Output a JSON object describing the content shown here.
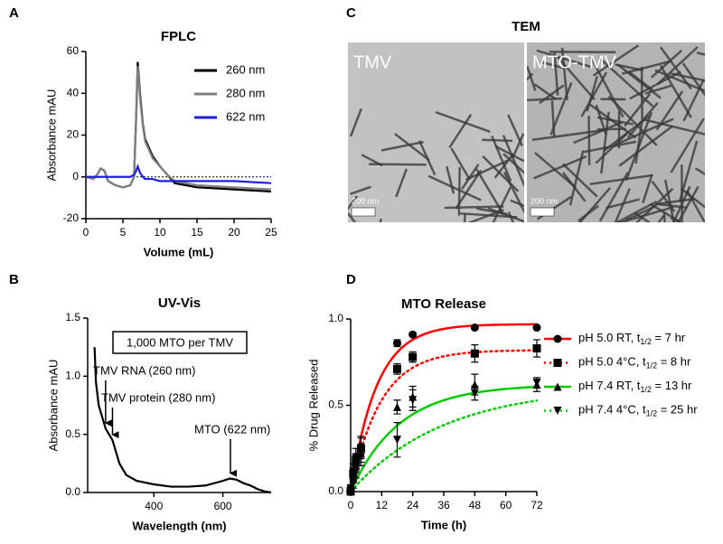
{
  "panel_labels": [
    "A",
    "B",
    "C",
    "D"
  ],
  "chart_data": [
    {
      "type": "line",
      "title": "FPLC",
      "x_label": "Volume (mL)",
      "y_label": "Absorbance mAU",
      "x": [
        0,
        1,
        1.5,
        2,
        2.5,
        3,
        4,
        5,
        6,
        6.5,
        6.8,
        7,
        7.3,
        7.7,
        8,
        9,
        10,
        11,
        12,
        15,
        20,
        25
      ],
      "series": [
        {
          "name": "260 nm",
          "color": "#000000",
          "values": [
            0,
            -1,
            1,
            4,
            3,
            -2,
            -4,
            -5,
            -4,
            0,
            30,
            55,
            40,
            25,
            18,
            10,
            5,
            1,
            -3,
            -5,
            -6,
            -7
          ]
        },
        {
          "name": "280 nm",
          "color": "#808080",
          "values": [
            0,
            -1,
            1,
            4,
            3,
            -2,
            -4,
            -5,
            -4,
            0,
            28,
            53,
            38,
            24,
            17,
            9,
            5,
            1,
            -2,
            -4,
            -5,
            -6
          ]
        },
        {
          "name": "622 nm",
          "color": "#1f1fe0",
          "values": [
            0,
            0,
            0,
            0,
            0,
            0,
            0,
            0,
            0,
            1,
            3,
            5,
            2,
            0,
            -1,
            -1,
            -2,
            -2,
            -2,
            -2,
            -2,
            -3
          ]
        }
      ],
      "reference_line": 0,
      "xlim": [
        0,
        25
      ],
      "xticks": [
        0,
        5,
        10,
        15,
        20,
        25
      ],
      "ylim": [
        -20,
        60
      ],
      "yticks": [
        -20,
        0,
        20,
        40,
        60
      ]
    },
    {
      "type": "line",
      "title": "UV-Vis",
      "x_label": "Wavelength (nm)",
      "y_label": "Absorbance mAU",
      "x": [
        228,
        232,
        240,
        250,
        260,
        270,
        280,
        290,
        300,
        320,
        350,
        400,
        450,
        500,
        550,
        600,
        620,
        640,
        660,
        680,
        700,
        720,
        740
      ],
      "values": [
        1.25,
        0.95,
        0.75,
        0.65,
        0.55,
        0.5,
        0.45,
        0.35,
        0.25,
        0.15,
        0.1,
        0.07,
        0.05,
        0.05,
        0.06,
        0.1,
        0.12,
        0.11,
        0.08,
        0.06,
        0.03,
        0.01,
        0
      ],
      "color": "#000000",
      "boxed_note": "1,000 MTO per TMV",
      "annotations": [
        {
          "text": "TMV RNA (260 nm)",
          "x": 260
        },
        {
          "text": "TMV protein (280 nm)",
          "x": 280
        },
        {
          "text": "MTO (622 nm)",
          "x": 622
        }
      ],
      "xlim": [
        208,
        740
      ],
      "xticks": [
        400,
        600
      ],
      "ylim": [
        0,
        1.5
      ],
      "yticks": [
        {
          "value": 0,
          "label": "0.0"
        },
        {
          "value": 0.5,
          "label": "0.5"
        },
        {
          "value": 1,
          "label": "1.0"
        },
        {
          "value": 1.5,
          "label": "1.5"
        }
      ]
    },
    {
      "type": "scatter",
      "title": "MTO Release",
      "x_label": "Time (h)",
      "y_label": "% Drug Released",
      "x": [
        0,
        1,
        2,
        4,
        18,
        24,
        48,
        72
      ],
      "series": [
        {
          "label_parts": [
            "pH 5.0 RT, t",
            "1/2",
            " = 7 hr"
          ],
          "half_life": 7,
          "plateau": 0.97,
          "color": "#ff0000",
          "dashed": false,
          "marker": "circle",
          "values": [
            0.02,
            0.12,
            0.2,
            0.26,
            0.86,
            0.91,
            0.95,
            0.95
          ],
          "errors": [
            0.02,
            0.04,
            0.05,
            0.06,
            0.02,
            0.01,
            0.01,
            0.01
          ]
        },
        {
          "label_parts": [
            "pH 5.0 4°C, t",
            "1/2",
            " = 8 hr"
          ],
          "half_life": 8,
          "plateau": 0.82,
          "color": "#ff0000",
          "dashed": true,
          "marker": "square",
          "values": [
            0,
            0.1,
            0.17,
            0.25,
            0.71,
            0.78,
            0.8,
            0.83
          ],
          "errors": [
            0.02,
            0.04,
            0.05,
            0.06,
            0.03,
            0.03,
            0.05,
            0.05
          ]
        },
        {
          "label_parts": [
            "pH 7.4 RT, t",
            "1/2",
            " = 13 hr"
          ],
          "half_life": 13,
          "plateau": 0.62,
          "color": "#00cc00",
          "dashed": false,
          "marker": "triangle-up",
          "values": [
            0,
            0.08,
            0.15,
            0.22,
            0.49,
            0.55,
            0.62,
            0.62
          ],
          "errors": [
            0.02,
            0.03,
            0.04,
            0.05,
            0.04,
            0.06,
            0.06,
            0.04
          ]
        },
        {
          "label_parts": [
            "pH 7.4 4°C, t",
            "1/2",
            " = 25 hr"
          ],
          "half_life": 25,
          "plateau": 0.61,
          "color": "#00cc00",
          "dashed": true,
          "marker": "triangle-down",
          "values": [
            0,
            0.05,
            0.12,
            0.2,
            0.3,
            0.53,
            0.57,
            0.63
          ],
          "errors": [
            0.02,
            0.03,
            0.04,
            0.05,
            0.1,
            0.06,
            0.04,
            0.03
          ]
        }
      ],
      "xlim": [
        0,
        72
      ],
      "xticks": [
        0,
        12,
        24,
        36,
        48,
        60,
        72
      ],
      "ylim": [
        0,
        1
      ],
      "yticks": [
        {
          "value": 0,
          "label": "0.0"
        },
        {
          "value": 0.5,
          "label": "0.5"
        },
        {
          "value": 1,
          "label": "1.0"
        }
      ]
    }
  ],
  "tem": {
    "title": "TEM",
    "images": [
      {
        "label": "TMV",
        "scale_bar": "200 nm"
      },
      {
        "label": "MTO-TMV",
        "scale_bar": "200 nm"
      }
    ]
  }
}
